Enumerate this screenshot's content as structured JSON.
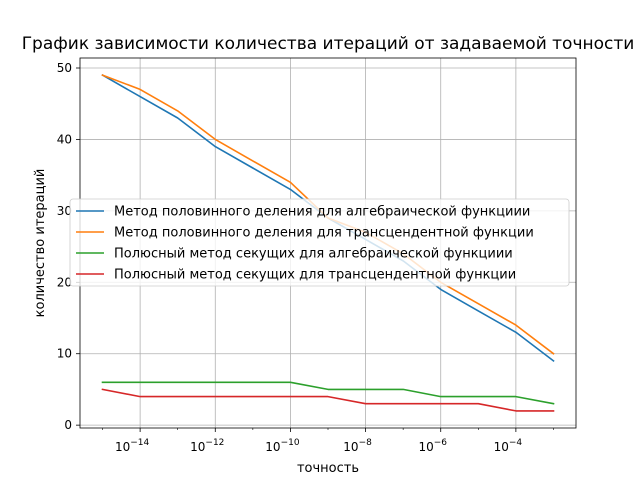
{
  "chart_data": {
    "type": "line",
    "title": "График зависимости количества итераций от задаваемой точности",
    "xlabel": "точность",
    "ylabel": "количество итераций",
    "x_scale": "log",
    "x": [
      1e-15,
      1e-14,
      1e-13,
      1e-12,
      1e-11,
      1e-10,
      1e-09,
      1e-08,
      1e-07,
      1e-06,
      1e-05,
      0.0001,
      0.001
    ],
    "x_tick_values": [
      1e-14,
      1e-12,
      1e-10,
      1e-08,
      1e-06,
      0.0001
    ],
    "x_tick_labels": [
      {
        "base": "10",
        "exp": "−14"
      },
      {
        "base": "10",
        "exp": "−12"
      },
      {
        "base": "10",
        "exp": "−10"
      },
      {
        "base": "10",
        "exp": "−8"
      },
      {
        "base": "10",
        "exp": "−6"
      },
      {
        "base": "10",
        "exp": "−4"
      }
    ],
    "ylim": [
      -0.4,
      51.4
    ],
    "y_ticks": [
      0,
      10,
      20,
      30,
      40,
      50
    ],
    "y_tick_labels": [
      "0",
      "10",
      "20",
      "30",
      "40",
      "50"
    ],
    "grid": true,
    "legend_placement": "center-left",
    "series": [
      {
        "name": "Метод половинного деления для алгебраической функциии",
        "color": "#1f77b4",
        "values": [
          49,
          46,
          43,
          39,
          36,
          33,
          29,
          26,
          23,
          19,
          16,
          13,
          9
        ]
      },
      {
        "name": "Метод половинного деления для трансцендентной функции",
        "color": "#ff7f0e",
        "values": [
          49,
          47,
          44,
          40,
          37,
          34,
          29,
          27,
          24,
          20,
          17,
          14,
          10
        ]
      },
      {
        "name": "Полюсный метод секущих для алгебраической функциии",
        "color": "#2ca02c",
        "values": [
          6,
          6,
          6,
          6,
          6,
          6,
          5,
          5,
          5,
          4,
          4,
          4,
          3
        ]
      },
      {
        "name": "Полюсный метод секущих для трансцендентной функции",
        "color": "#d62728",
        "values": [
          5,
          4,
          4,
          4,
          4,
          4,
          4,
          3,
          3,
          3,
          3,
          2,
          2
        ]
      }
    ]
  }
}
